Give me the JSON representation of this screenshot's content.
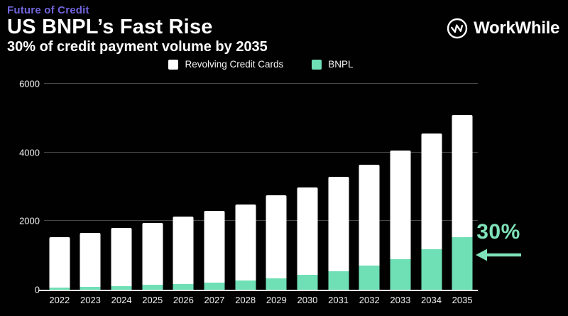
{
  "page": {
    "background": "#010101"
  },
  "header": {
    "eyebrow": "Future of Credit",
    "title": "US BNPL’s Fast Rise",
    "subtitle": "30% of credit payment volume by 2035"
  },
  "logo": {
    "text": "WorkWhile"
  },
  "colors": {
    "eyebrow_purple": "#7165DB",
    "bar_white": "#ffffff",
    "bar_mint": "#6FDFB5",
    "annotation_mint": "#7FE1B9",
    "gridline": "#474747",
    "axis_line": "#EDE4E4",
    "axis_text": "#f0f0f0"
  },
  "legend": [
    {
      "label": "Revolving Credit Cards",
      "color": "#ffffff"
    },
    {
      "label": "BNPL",
      "color": "#6FDFB5"
    }
  ],
  "annotation": {
    "label": "30%"
  },
  "chart_data": {
    "type": "bar",
    "stacked": true,
    "title": "US BNPL’s Fast Rise",
    "subtitle": "30% of credit payment volume by 2035",
    "xlabel": "",
    "ylabel": "",
    "ylim": [
      0,
      6000
    ],
    "y_ticks": [
      0,
      2000,
      4000,
      6000
    ],
    "grid": "horizontal",
    "legend_position": "top-center",
    "categories": [
      "2022",
      "2023",
      "2024",
      "2025",
      "2026",
      "2027",
      "2028",
      "2029",
      "2030",
      "2031",
      "2032",
      "2033",
      "2034",
      "2035"
    ],
    "series": [
      {
        "name": "BNPL",
        "color": "#6FDFB5",
        "values": [
          60,
          85,
          110,
          140,
          175,
          210,
          260,
          340,
          440,
          530,
          700,
          900,
          1180,
          1530
        ]
      },
      {
        "name": "Revolving Credit Cards",
        "color": "#ffffff",
        "values": [
          1470,
          1575,
          1680,
          1810,
          1955,
          2090,
          2220,
          2410,
          2540,
          2770,
          2950,
          3150,
          3370,
          3570
        ]
      }
    ],
    "totals": [
      1530,
      1660,
      1790,
      1950,
      2130,
      2300,
      2480,
      2750,
      2980,
      3300,
      3650,
      4050,
      4550,
      5100
    ],
    "annotation": {
      "text": "30%",
      "target_year": "2035",
      "target_series": "BNPL",
      "bnpl_share_2035": "30%"
    }
  }
}
